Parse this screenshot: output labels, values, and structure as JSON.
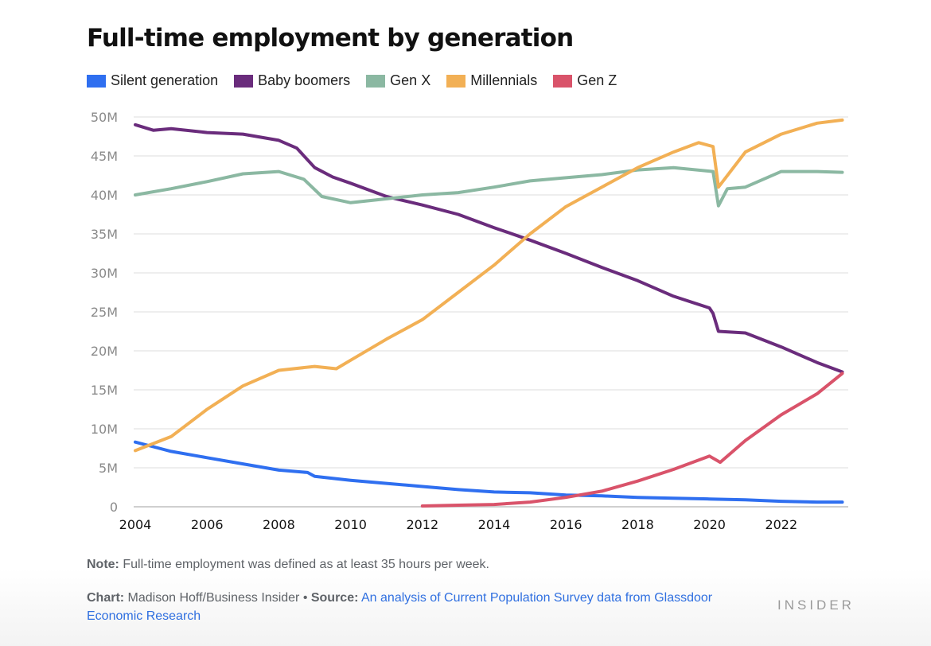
{
  "chart_data": {
    "type": "line",
    "title": "Full-time employment by generation",
    "xlabel": "",
    "ylabel": "",
    "xlim": [
      2004,
      2023.8
    ],
    "ylim": [
      0,
      50000000
    ],
    "grid": true,
    "legend_position": "top-left",
    "x_ticks": [
      2004,
      2006,
      2008,
      2010,
      2012,
      2014,
      2016,
      2018,
      2020,
      2022
    ],
    "x_tick_labels": [
      "2004",
      "2006",
      "2008",
      "2010",
      "2012",
      "2014",
      "2016",
      "2018",
      "2020",
      "2022"
    ],
    "y_ticks": [
      0,
      5000000,
      10000000,
      15000000,
      20000000,
      25000000,
      30000000,
      35000000,
      40000000,
      45000000,
      50000000
    ],
    "y_tick_labels": [
      "0",
      "5M",
      "10M",
      "15M",
      "20M",
      "25M",
      "30M",
      "35M",
      "40M",
      "45M",
      "50M"
    ],
    "series": [
      {
        "name": "Silent generation",
        "color": "#2f6ff0",
        "x": [
          2004,
          2004.5,
          2005,
          2006,
          2007,
          2008,
          2008.8,
          2009,
          2010,
          2011,
          2012,
          2013,
          2014,
          2015,
          2016,
          2017,
          2018,
          2019,
          2020,
          2021,
          2022,
          2023,
          2023.7
        ],
        "values": [
          8300000,
          7700000,
          7100000,
          6300000,
          5500000,
          4700000,
          4400000,
          3900000,
          3400000,
          3000000,
          2600000,
          2200000,
          1900000,
          1800000,
          1500000,
          1400000,
          1200000,
          1100000,
          1000000,
          900000,
          700000,
          600000,
          600000
        ]
      },
      {
        "name": "Baby boomers",
        "color": "#6a2c7c",
        "x": [
          2004,
          2004.5,
          2005,
          2006,
          2007,
          2008,
          2008.5,
          2009,
          2009.5,
          2010,
          2011,
          2012,
          2013,
          2014,
          2015,
          2016,
          2017,
          2018,
          2019,
          2020,
          2020.1,
          2020.25,
          2021,
          2022,
          2023,
          2023.7
        ],
        "values": [
          49000000,
          48300000,
          48500000,
          48000000,
          47800000,
          47000000,
          46000000,
          43500000,
          42300000,
          41500000,
          39800000,
          38700000,
          37500000,
          35800000,
          34200000,
          32500000,
          30700000,
          29000000,
          27000000,
          25500000,
          24800000,
          22500000,
          22300000,
          20500000,
          18500000,
          17300000
        ]
      },
      {
        "name": "Gen X",
        "color": "#8bb8a2",
        "x": [
          2004,
          2005,
          2006,
          2007,
          2008,
          2008.7,
          2009.2,
          2010,
          2011,
          2012,
          2013,
          2014,
          2015,
          2016,
          2017,
          2018,
          2019,
          2020.1,
          2020.25,
          2020.5,
          2021,
          2022,
          2023,
          2023.7
        ],
        "values": [
          40000000,
          40800000,
          41700000,
          42700000,
          43000000,
          42000000,
          39800000,
          39000000,
          39500000,
          40000000,
          40300000,
          41000000,
          41800000,
          42200000,
          42600000,
          43200000,
          43500000,
          43000000,
          38600000,
          40800000,
          41000000,
          43000000,
          43000000,
          42900000
        ]
      },
      {
        "name": "Millennials",
        "color": "#f2b055",
        "x": [
          2004,
          2005,
          2006,
          2007,
          2008,
          2009,
          2009.6,
          2010,
          2011,
          2012,
          2013,
          2014,
          2015,
          2016,
          2017,
          2018,
          2019,
          2019.7,
          2020.1,
          2020.25,
          2021,
          2022,
          2023,
          2023.7
        ],
        "values": [
          7200000,
          9000000,
          12500000,
          15500000,
          17500000,
          18000000,
          17700000,
          18800000,
          21500000,
          24000000,
          27500000,
          31000000,
          35000000,
          38500000,
          41000000,
          43500000,
          45500000,
          46700000,
          46200000,
          41000000,
          45500000,
          47800000,
          49200000,
          49600000
        ]
      },
      {
        "name": "Gen Z",
        "color": "#d9536a",
        "x": [
          2012,
          2013,
          2014,
          2015,
          2016,
          2017,
          2018,
          2019,
          2020,
          2020.3,
          2021,
          2022,
          2023,
          2023.7
        ],
        "values": [
          100000,
          200000,
          300000,
          600000,
          1200000,
          2000000,
          3300000,
          4800000,
          6500000,
          5700000,
          8500000,
          11800000,
          14500000,
          17100000
        ]
      }
    ]
  },
  "footer": {
    "note_label": "Note:",
    "note_text": " Full-time employment was defined as at least 35 hours per week.",
    "chart_label": "Chart:",
    "chart_text": " Madison Hoff/Business Insider • ",
    "source_label": "Source:",
    "source_link_text": "An analysis of Current Population Survey data from Glassdoor Economic Research",
    "brand": "INSIDER"
  }
}
